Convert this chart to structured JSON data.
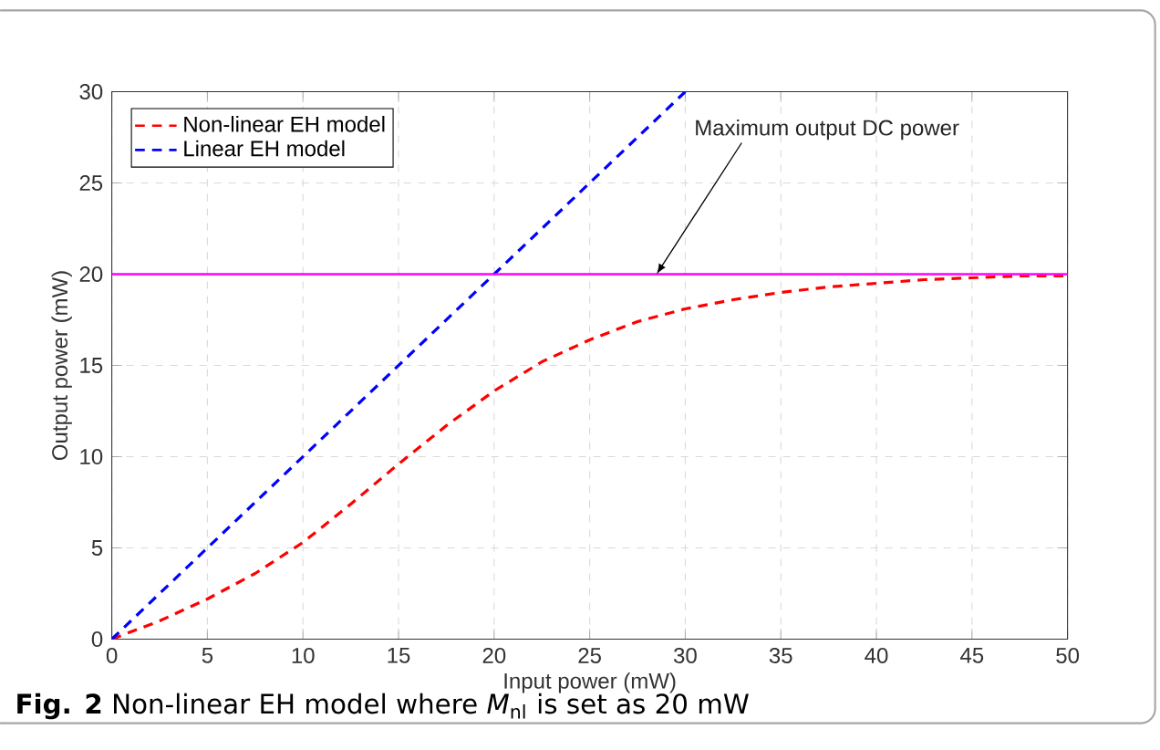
{
  "chart_data": {
    "type": "line",
    "xlabel": "Input power (mW)",
    "ylabel": "Output power (mW)",
    "xlim": [
      0,
      50
    ],
    "ylim": [
      0,
      30
    ],
    "xticks": [
      0,
      5,
      10,
      15,
      20,
      25,
      30,
      35,
      40,
      45,
      50
    ],
    "yticks": [
      0,
      5,
      10,
      15,
      20,
      25,
      30
    ],
    "grid": true,
    "legend": "top left",
    "line_style": "dashed",
    "marker": "none",
    "series": [
      {
        "name": "Non-linear EH model",
        "color": "#ff0000",
        "x": [
          0,
          2.5,
          5,
          7.5,
          10,
          12.5,
          15,
          17.5,
          20,
          22.5,
          25,
          27.5,
          30,
          32.5,
          35,
          37.5,
          40,
          42.5,
          45,
          47.5,
          50
        ],
        "values": [
          0,
          1,
          2.2,
          3.6,
          5.3,
          7.4,
          9.6,
          11.7,
          13.6,
          15.2,
          16.4,
          17.4,
          18.1,
          18.6,
          19,
          19.3,
          19.5,
          19.7,
          19.8,
          19.9,
          19.9
        ]
      },
      {
        "name": "Linear EH model",
        "color": "#0000ff",
        "x": [
          0,
          30
        ],
        "values": [
          0,
          30
        ]
      }
    ],
    "ref_lines": [
      {
        "axis": "y",
        "value": 20,
        "color": "#ff00ff",
        "line_style": "solid"
      }
    ],
    "annotations": [
      {
        "text": "Maximum output DC power",
        "x": 28.5,
        "y": 20
      },
      "**Fig. 2** Non-linear EH model where *M*$_{nl}$ is set as 20 mW"
    ]
  }
}
